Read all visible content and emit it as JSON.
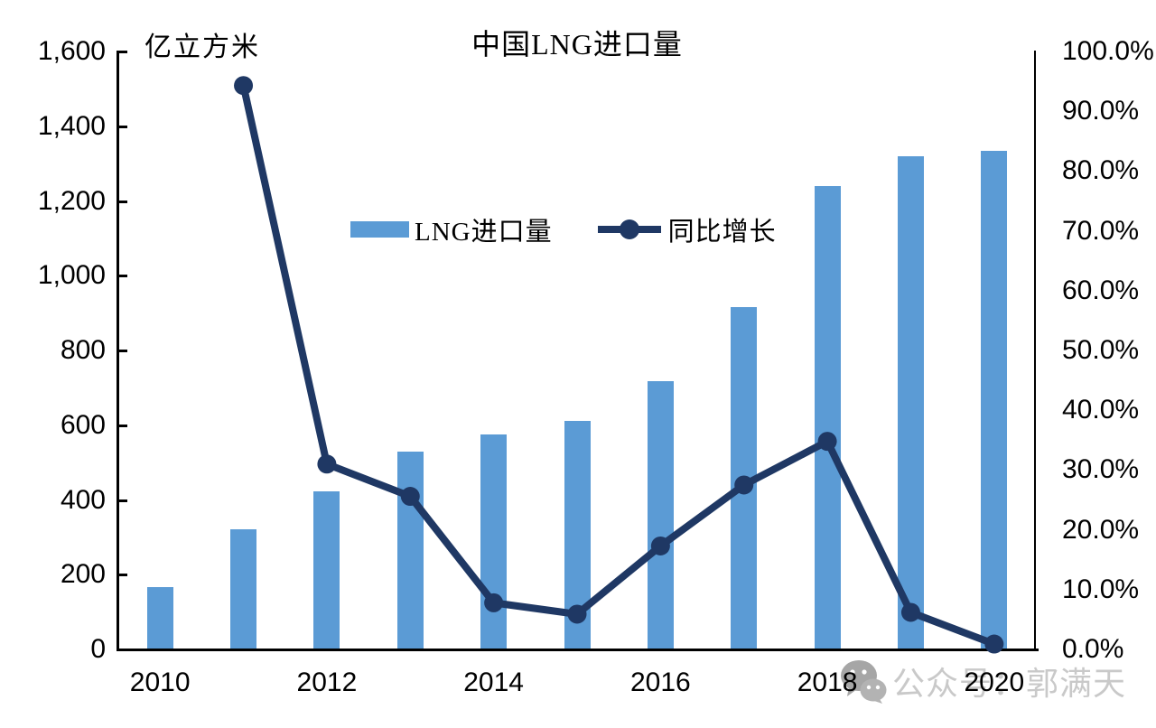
{
  "title": "中国LNG进口量",
  "unit_label": "亿立方米",
  "legend": {
    "bar_label": "LNG进口量",
    "line_label": "同比增长"
  },
  "colors": {
    "bar": "#5B9BD5",
    "line": "#1F3864",
    "axis": "#000000",
    "watermark_text": "#C9C9C9",
    "watermark_icon": "#A6A6A6"
  },
  "left_axis": {
    "ticks": [
      "1,600",
      "1,400",
      "1,200",
      "1,000",
      "800",
      "600",
      "400",
      "200",
      "0"
    ],
    "min": 0,
    "max": 1600
  },
  "right_axis": {
    "ticks": [
      "100.0%",
      "90.0%",
      "80.0%",
      "70.0%",
      "60.0%",
      "50.0%",
      "40.0%",
      "30.0%",
      "20.0%",
      "10.0%",
      "0.0%"
    ],
    "min": 0,
    "max": 100
  },
  "x_axis": {
    "labels": [
      "2010",
      "2012",
      "2014",
      "2016",
      "2018",
      "2020"
    ]
  },
  "watermark": {
    "icon": "wechat-icon",
    "text": "公众号：郭满天"
  },
  "chart_data": {
    "type": "combo-bar-line",
    "title": "中国LNG进口量",
    "categories": [
      "2010",
      "2011",
      "2012",
      "2013",
      "2014",
      "2015",
      "2016",
      "2017",
      "2018",
      "2019",
      "2020"
    ],
    "series": [
      {
        "name": "LNG进口量",
        "type": "bar",
        "axis": "left",
        "unit": "亿立方米",
        "values": [
          166,
          322,
          422,
          530,
          575,
          612,
          719,
          917,
          1240,
          1320,
          1334
        ]
      },
      {
        "name": "同比增长",
        "type": "line",
        "axis": "right",
        "unit": "%",
        "values": [
          null,
          94.3,
          31.0,
          25.6,
          7.8,
          5.9,
          17.3,
          27.5,
          34.8,
          6.2,
          0.9
        ]
      }
    ],
    "left_ylim": [
      0,
      1600
    ],
    "right_ylim": [
      0,
      100
    ],
    "grid": false,
    "legend_position": "upper-center"
  }
}
